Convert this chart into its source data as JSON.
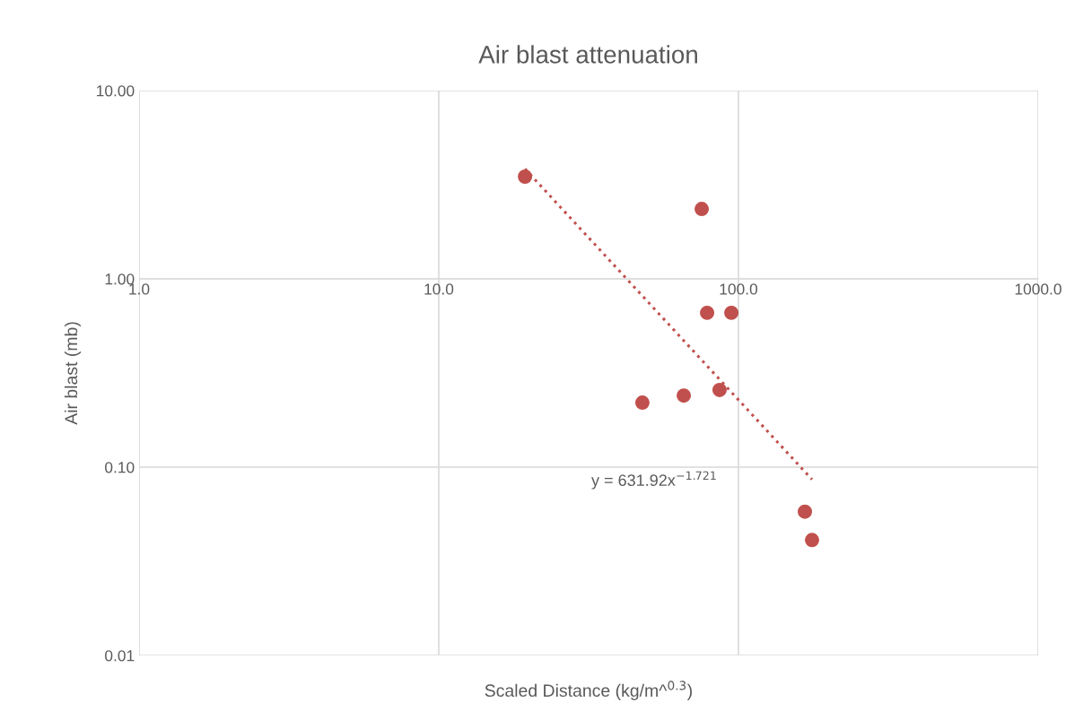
{
  "chart_data": {
    "type": "scatter",
    "title": "Air blast attenuation",
    "xlabel": "Scaled Distance (kg/m^$^{0.3}$)",
    "ylabel": "Air blast (mb)",
    "log": "xy",
    "grid": true,
    "legend": false,
    "xlim": [
      1,
      1000
    ],
    "ylim": [
      0.01,
      10
    ],
    "xticks": [
      {
        "value": 1,
        "label": "1.0"
      },
      {
        "value": 10,
        "label": "10.0"
      },
      {
        "value": 100,
        "label": "100.0"
      },
      {
        "value": 1000,
        "label": "1000.0"
      }
    ],
    "yticks": [
      {
        "value": 0.01,
        "label": "0.01"
      },
      {
        "value": 0.1,
        "label": "0.10"
      },
      {
        "value": 1,
        "label": "1.00"
      },
      {
        "value": 10,
        "label": "10.00"
      }
    ],
    "series": [
      {
        "marker": "circle",
        "color": "#c0504d",
        "x": [
          19.4,
          75.4,
          78.6,
          94.7,
          47.8,
          65.7,
          86.5,
          166.6,
          176
        ],
        "values": [
          3.49,
          2.35,
          0.66,
          0.66,
          0.22,
          0.24,
          0.257,
          0.058,
          0.041
        ]
      },
      {
        "type": "line",
        "color": "#c0504d",
        "line_style": "dotted",
        "marker": "none",
        "x": [
          19.4,
          176
        ],
        "values": [
          3.84,
          0.086
        ]
      }
    ],
    "annotations": [
      "y = 631.92x$^{−1.721}$"
    ]
  }
}
